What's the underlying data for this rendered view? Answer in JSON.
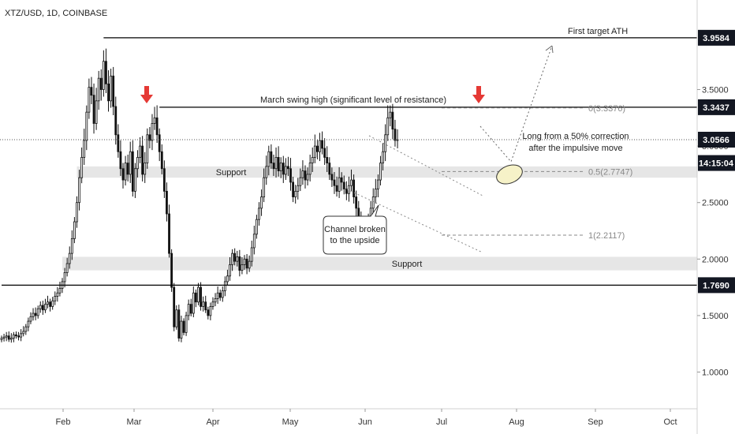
{
  "chart_data": {
    "type": "candlestick",
    "title": "XTZ/USD, 1D, COINBASE",
    "x_ticks": [
      "Feb",
      "Mar",
      "Apr",
      "May",
      "Jun",
      "Jul",
      "Aug",
      "Sep",
      "Oct"
    ],
    "y_ticks": [
      "1.0000",
      "1.5000",
      "2.0000",
      "2.5000",
      "3.0000",
      "3.5000"
    ],
    "ylim": [
      0.7,
      4.2
    ],
    "price_badges": [
      {
        "text": "3.9584",
        "value": 3.9584,
        "style": "dark"
      },
      {
        "text": "3.3437",
        "value": 3.3437,
        "style": "dark"
      },
      {
        "text": "3.0566",
        "value": 3.0566,
        "style": "dark"
      },
      {
        "text": "14:15:04",
        "value": 2.85,
        "style": "dark"
      },
      {
        "text": "1.7690",
        "value": 1.769,
        "style": "dark"
      }
    ],
    "levels": [
      {
        "value": 3.9584,
        "start_day": 42,
        "label": "First target ATH"
      },
      {
        "value": 3.3437,
        "start_day": 65,
        "label": "March swing high (significant level of resistance)"
      },
      {
        "value": 1.769,
        "start_day": 0,
        "label": ""
      }
    ],
    "support_zones": [
      {
        "low": 2.72,
        "high": 2.82,
        "start_day": 31,
        "label": "Support"
      },
      {
        "low": 1.9,
        "high": 2.02,
        "start_day": 25,
        "label": "Support"
      }
    ],
    "fib_levels": [
      {
        "label": "0(3.3376)",
        "value": 3.3376
      },
      {
        "label": "0.5(2.7747)",
        "value": 2.7747
      },
      {
        "label": "1(2.2117)",
        "value": 2.2117
      }
    ],
    "annotations": [
      {
        "text": "Long from a 50% correction",
        "line2": "after the impulsive move"
      },
      {
        "text": "Channel broken",
        "line2": "to the upside"
      }
    ],
    "series": [
      {
        "name": "XTZ/USD",
        "last": 3.0566,
        "closes": [
          1.3,
          1.31,
          1.32,
          1.29,
          1.3,
          1.33,
          1.32,
          1.31,
          1.34,
          1.36,
          1.4,
          1.45,
          1.49,
          1.52,
          1.5,
          1.56,
          1.59,
          1.55,
          1.6,
          1.62,
          1.58,
          1.63,
          1.67,
          1.7,
          1.74,
          1.8,
          1.88,
          1.96,
          2.05,
          2.18,
          2.33,
          2.5,
          2.72,
          2.9,
          3.05,
          3.3,
          3.52,
          3.45,
          3.2,
          3.4,
          3.6,
          3.5,
          3.75,
          3.55,
          3.4,
          3.62,
          3.35,
          3.1,
          2.95,
          2.8,
          2.7,
          2.85,
          2.75,
          2.95,
          2.6,
          2.8,
          2.9,
          3.0,
          2.75,
          2.85,
          3.1,
          3.05,
          3.2,
          3.25,
          3.1,
          2.95,
          2.8,
          2.6,
          2.4,
          2.05,
          1.75,
          1.4,
          1.55,
          1.3,
          1.45,
          1.35,
          1.5,
          1.6,
          1.52,
          1.7,
          1.62,
          1.75,
          1.58,
          1.62,
          1.55,
          1.5,
          1.58,
          1.62,
          1.65,
          1.7,
          1.66,
          1.72,
          1.8,
          1.85,
          1.95,
          2.05,
          1.98,
          2.02,
          1.9,
          1.95,
          2.0,
          1.92,
          1.98,
          2.1,
          2.22,
          2.35,
          2.45,
          2.55,
          2.72,
          2.82,
          2.95,
          2.85,
          2.8,
          2.9,
          2.78,
          2.85,
          2.75,
          2.82,
          2.8,
          2.68,
          2.55,
          2.6,
          2.65,
          2.72,
          2.78,
          2.7,
          2.75,
          2.85,
          2.9,
          3.0,
          2.95,
          3.05,
          2.98,
          2.9,
          2.85,
          2.75,
          2.7,
          2.65,
          2.6,
          2.72,
          2.68,
          2.62,
          2.58,
          2.65,
          2.7,
          2.55,
          2.45,
          2.35,
          2.3,
          2.22,
          2.28,
          2.35,
          2.45,
          2.55,
          2.62,
          2.7,
          2.85,
          2.95,
          3.1,
          3.25,
          3.3,
          3.15,
          3.05,
          3.0566
        ]
      }
    ]
  }
}
